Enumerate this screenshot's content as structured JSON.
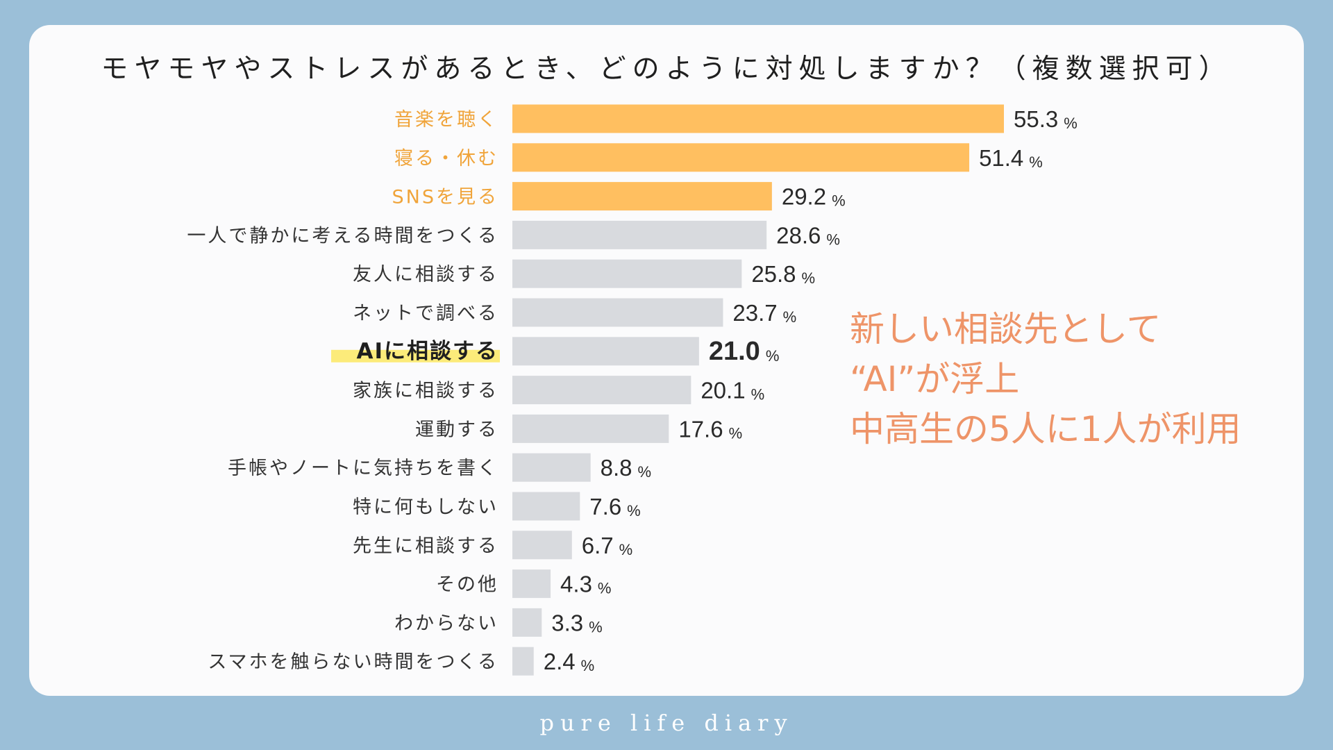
{
  "title": "モヤモヤやストレスがあるとき、どのように対処しますか？（複数選択可）",
  "callout": {
    "line1": "新しい相談先として",
    "line2": "“AI”が浮上",
    "line3": "中高生の5人に1人が利用"
  },
  "footer": "pure life diary",
  "colors": {
    "highlight_bar": "#FFBF60",
    "highlight_label": "#F0A43A",
    "normal_bar": "#D8DADE",
    "label_text": "#333333",
    "marker": "#FCEB7A",
    "callout": "#EE9468",
    "background": "#9BBFD8",
    "card": "#FBFBFC"
  },
  "chart_data": {
    "type": "bar",
    "orientation": "horizontal",
    "title": "モヤモヤやストレスがあるとき、どのように対処しますか？（複数選択可）",
    "unit": "%",
    "xlim": [
      0,
      60
    ],
    "categories": [
      "音楽を聴く",
      "寝る・休む",
      "SNSを見る",
      "一人で静かに考える時間をつくる",
      "友人に相談する",
      "ネットで調べる",
      "AIに相談する",
      "家族に相談する",
      "運動する",
      "手帳やノートに気持ちを書く",
      "特に何もしない",
      "先生に相談する",
      "その他",
      "わからない",
      "スマホを触らない時間をつくる"
    ],
    "values": [
      55.3,
      51.4,
      29.2,
      28.6,
      25.8,
      23.7,
      21.0,
      20.1,
      17.6,
      8.8,
      7.6,
      6.7,
      4.3,
      3.3,
      2.4
    ],
    "value_labels": [
      "55.3",
      "51.4",
      "29.2",
      "28.6",
      "25.8",
      "23.7",
      "21.0",
      "20.1",
      "17.6",
      "8.8",
      "7.6",
      "6.7",
      "4.3",
      "3.3",
      "2.4"
    ],
    "highlighted_top": [
      0,
      1,
      2
    ],
    "emphasized": 6
  }
}
